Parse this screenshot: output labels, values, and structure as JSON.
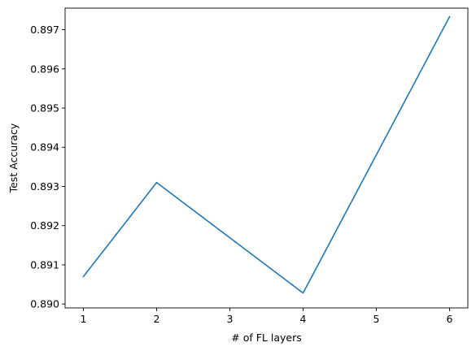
{
  "chart_data": {
    "type": "line",
    "title": "",
    "xlabel": "# of FL layers",
    "ylabel": "Test Accuracy",
    "xlim": [
      0.75,
      6.25
    ],
    "ylim": [
      0.8899,
      0.89755
    ],
    "x_ticks": [
      1,
      2,
      3,
      4,
      5,
      6
    ],
    "y_ticks": [
      0.89,
      0.891,
      0.892,
      0.893,
      0.894,
      0.895,
      0.896,
      0.897
    ],
    "x_tick_labels": [
      "1",
      "2",
      "3",
      "4",
      "5",
      "6"
    ],
    "y_tick_labels": [
      "0.890",
      "0.891",
      "0.892",
      "0.893",
      "0.894",
      "0.895",
      "0.896",
      "0.897"
    ],
    "grid": false,
    "series": [
      {
        "color": "#1f77b4",
        "x": [
          1,
          2,
          4,
          6
        ],
        "y": [
          0.8907,
          0.8931,
          0.89028,
          0.89733
        ]
      }
    ]
  }
}
